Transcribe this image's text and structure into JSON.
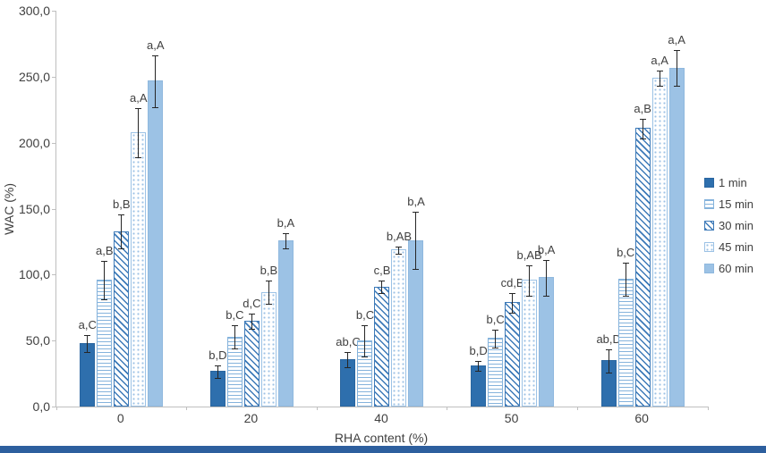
{
  "chart_data": {
    "type": "bar",
    "title": "",
    "xlabel": "RHA content (%)",
    "ylabel": "WAC (%)",
    "ylim": [
      0,
      300
    ],
    "grid": false,
    "legend_position": "right",
    "y_ticks": [
      "300,0",
      "250,0",
      "200,0",
      "150,0",
      "100,0",
      "50,0",
      "0,0"
    ],
    "y_tick_values": [
      300,
      250,
      200,
      150,
      100,
      50,
      0
    ],
    "categories": [
      "0",
      "20",
      "40",
      "50",
      "60"
    ],
    "series": [
      {
        "name": "1 min",
        "pattern": "solid-dark",
        "values": [
          48,
          27,
          36,
          31,
          35
        ],
        "errors": [
          7,
          5,
          6,
          4,
          9
        ],
        "labels": [
          "a,C",
          "b,D",
          "ab,C",
          "b,D",
          "ab,D"
        ]
      },
      {
        "name": "15 min",
        "pattern": "h-stripes",
        "values": [
          96,
          53,
          50,
          52,
          97
        ],
        "errors": [
          15,
          9,
          12,
          7,
          13
        ],
        "labels": [
          "a,B",
          "b,C",
          "b,C",
          "b,C",
          "b,C"
        ]
      },
      {
        "name": "30 min",
        "pattern": "diag-stripes",
        "values": [
          133,
          65,
          91,
          79,
          211
        ],
        "errors": [
          13,
          6,
          5,
          8,
          8
        ],
        "labels": [
          "b,B",
          "d,C",
          "c,B",
          "cd,B",
          "a,B"
        ]
      },
      {
        "name": "45 min",
        "pattern": "dots",
        "values": [
          208,
          87,
          119,
          96,
          249
        ],
        "errors": [
          19,
          9,
          3,
          12,
          6
        ],
        "labels": [
          "a,A",
          "b,B",
          "b,AB",
          "b,AB",
          "a,A"
        ]
      },
      {
        "name": "60 min",
        "pattern": "solid-light",
        "values": [
          247,
          126,
          126,
          98,
          257
        ],
        "errors": [
          20,
          6,
          22,
          14,
          14
        ],
        "labels": [
          "a,A",
          "b,A",
          "b,A",
          "b,A",
          "a,A"
        ]
      }
    ],
    "colors": {
      "dark_blue": "#2e6fad",
      "light_blue": "#9cc2e5",
      "stripe_blue": "#3d7ab8",
      "error_bar": "#262626",
      "axis": "#bfbfbf",
      "text": "#404040",
      "bottom_bar": "#2d5f9e"
    }
  }
}
